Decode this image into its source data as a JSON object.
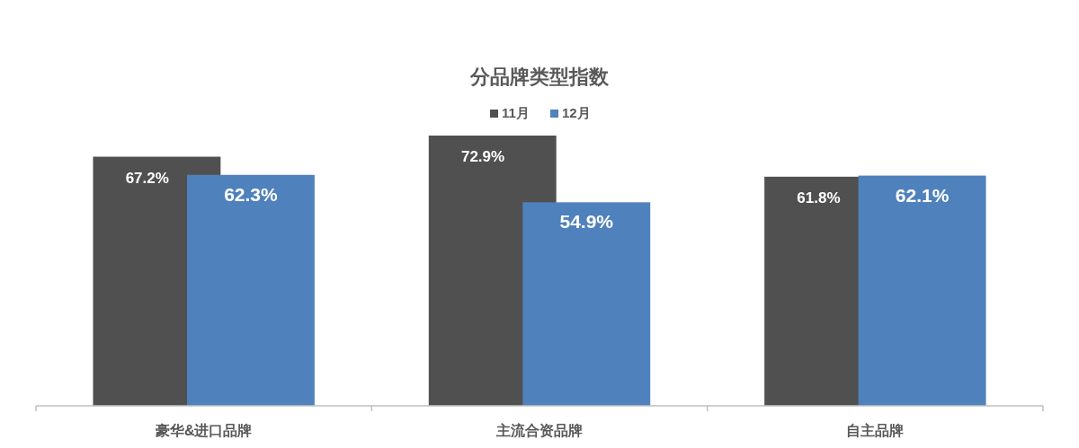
{
  "chart_data": {
    "type": "bar",
    "title": "分品牌类型指数",
    "categories": [
      "豪华&进口品牌",
      "主流合资品牌",
      "自主品牌"
    ],
    "legend": "top",
    "series": [
      {
        "name": "11月",
        "color": "#505050",
        "values": [
          67.2,
          72.9,
          61.8
        ],
        "value_labels": [
          "67.2%",
          "72.9%",
          "61.8%"
        ]
      },
      {
        "name": "12月",
        "color": "#4f81bd",
        "values": [
          62.3,
          54.9,
          62.1
        ],
        "value_labels": [
          "62.3%",
          "54.9%",
          "62.1%"
        ]
      }
    ]
  }
}
